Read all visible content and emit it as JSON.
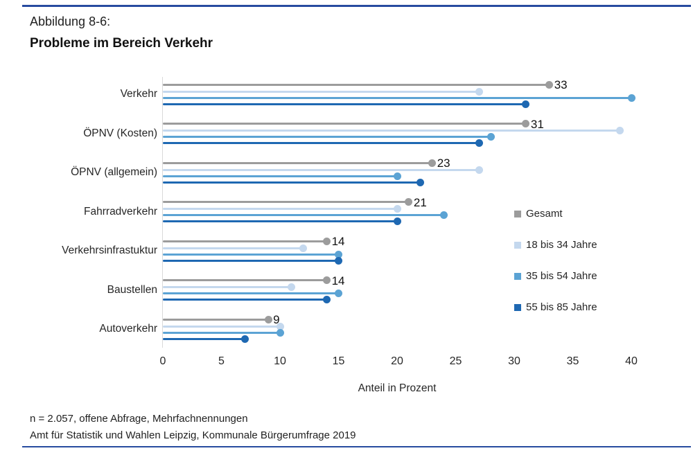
{
  "page": {
    "figure_label": "Abbildung 8-6:",
    "title": "Probleme im Bereich Verkehr",
    "footnote1": "n = 2.057, offene Abfrage, Mehrfachnennungen",
    "footnote2": "Amt für Statistik und Wahlen Leipzig, Kommunale Bürgerumfrage 2019"
  },
  "colors": {
    "accent_rule": "#274b9f",
    "axis_line": "#d9d9d9",
    "text": "#262626"
  },
  "chart_data": {
    "type": "bar",
    "subtype": "horizontal-lollipop",
    "title": "Probleme im Bereich Verkehr",
    "categories": [
      "Verkehr",
      "ÖPNV (Kosten)",
      "ÖPNV (allgemein)",
      "Fahrradverkehr",
      "Verkehrsinfrastuktur",
      "Baustellen",
      "Autoverkehr"
    ],
    "series": [
      {
        "name": "Gesamt",
        "color": "#9c9c9c",
        "labeled": true,
        "values": [
          33,
          31,
          23,
          21,
          14,
          14,
          9
        ]
      },
      {
        "name": "18 bis 34 Jahre",
        "color": "#c4d8ee",
        "labeled": false,
        "values": [
          27,
          39,
          27,
          20,
          12,
          11,
          10
        ]
      },
      {
        "name": "35 bis 54 Jahre",
        "color": "#5ba3d4",
        "labeled": false,
        "values": [
          40,
          28,
          20,
          24,
          15,
          15,
          10
        ]
      },
      {
        "name": "55 bis 85 Jahre",
        "color": "#1e68b2",
        "labeled": false,
        "values": [
          31,
          27,
          22,
          20,
          15,
          14,
          7
        ]
      }
    ],
    "value_labels": [
      33,
      31,
      23,
      21,
      14,
      14,
      9
    ],
    "xlabel": "Anteil in Prozent",
    "xlim": [
      0,
      40
    ],
    "xticks": [
      0,
      5,
      10,
      15,
      20,
      25,
      30,
      35,
      40
    ],
    "grid": false,
    "legend_position": "right"
  }
}
